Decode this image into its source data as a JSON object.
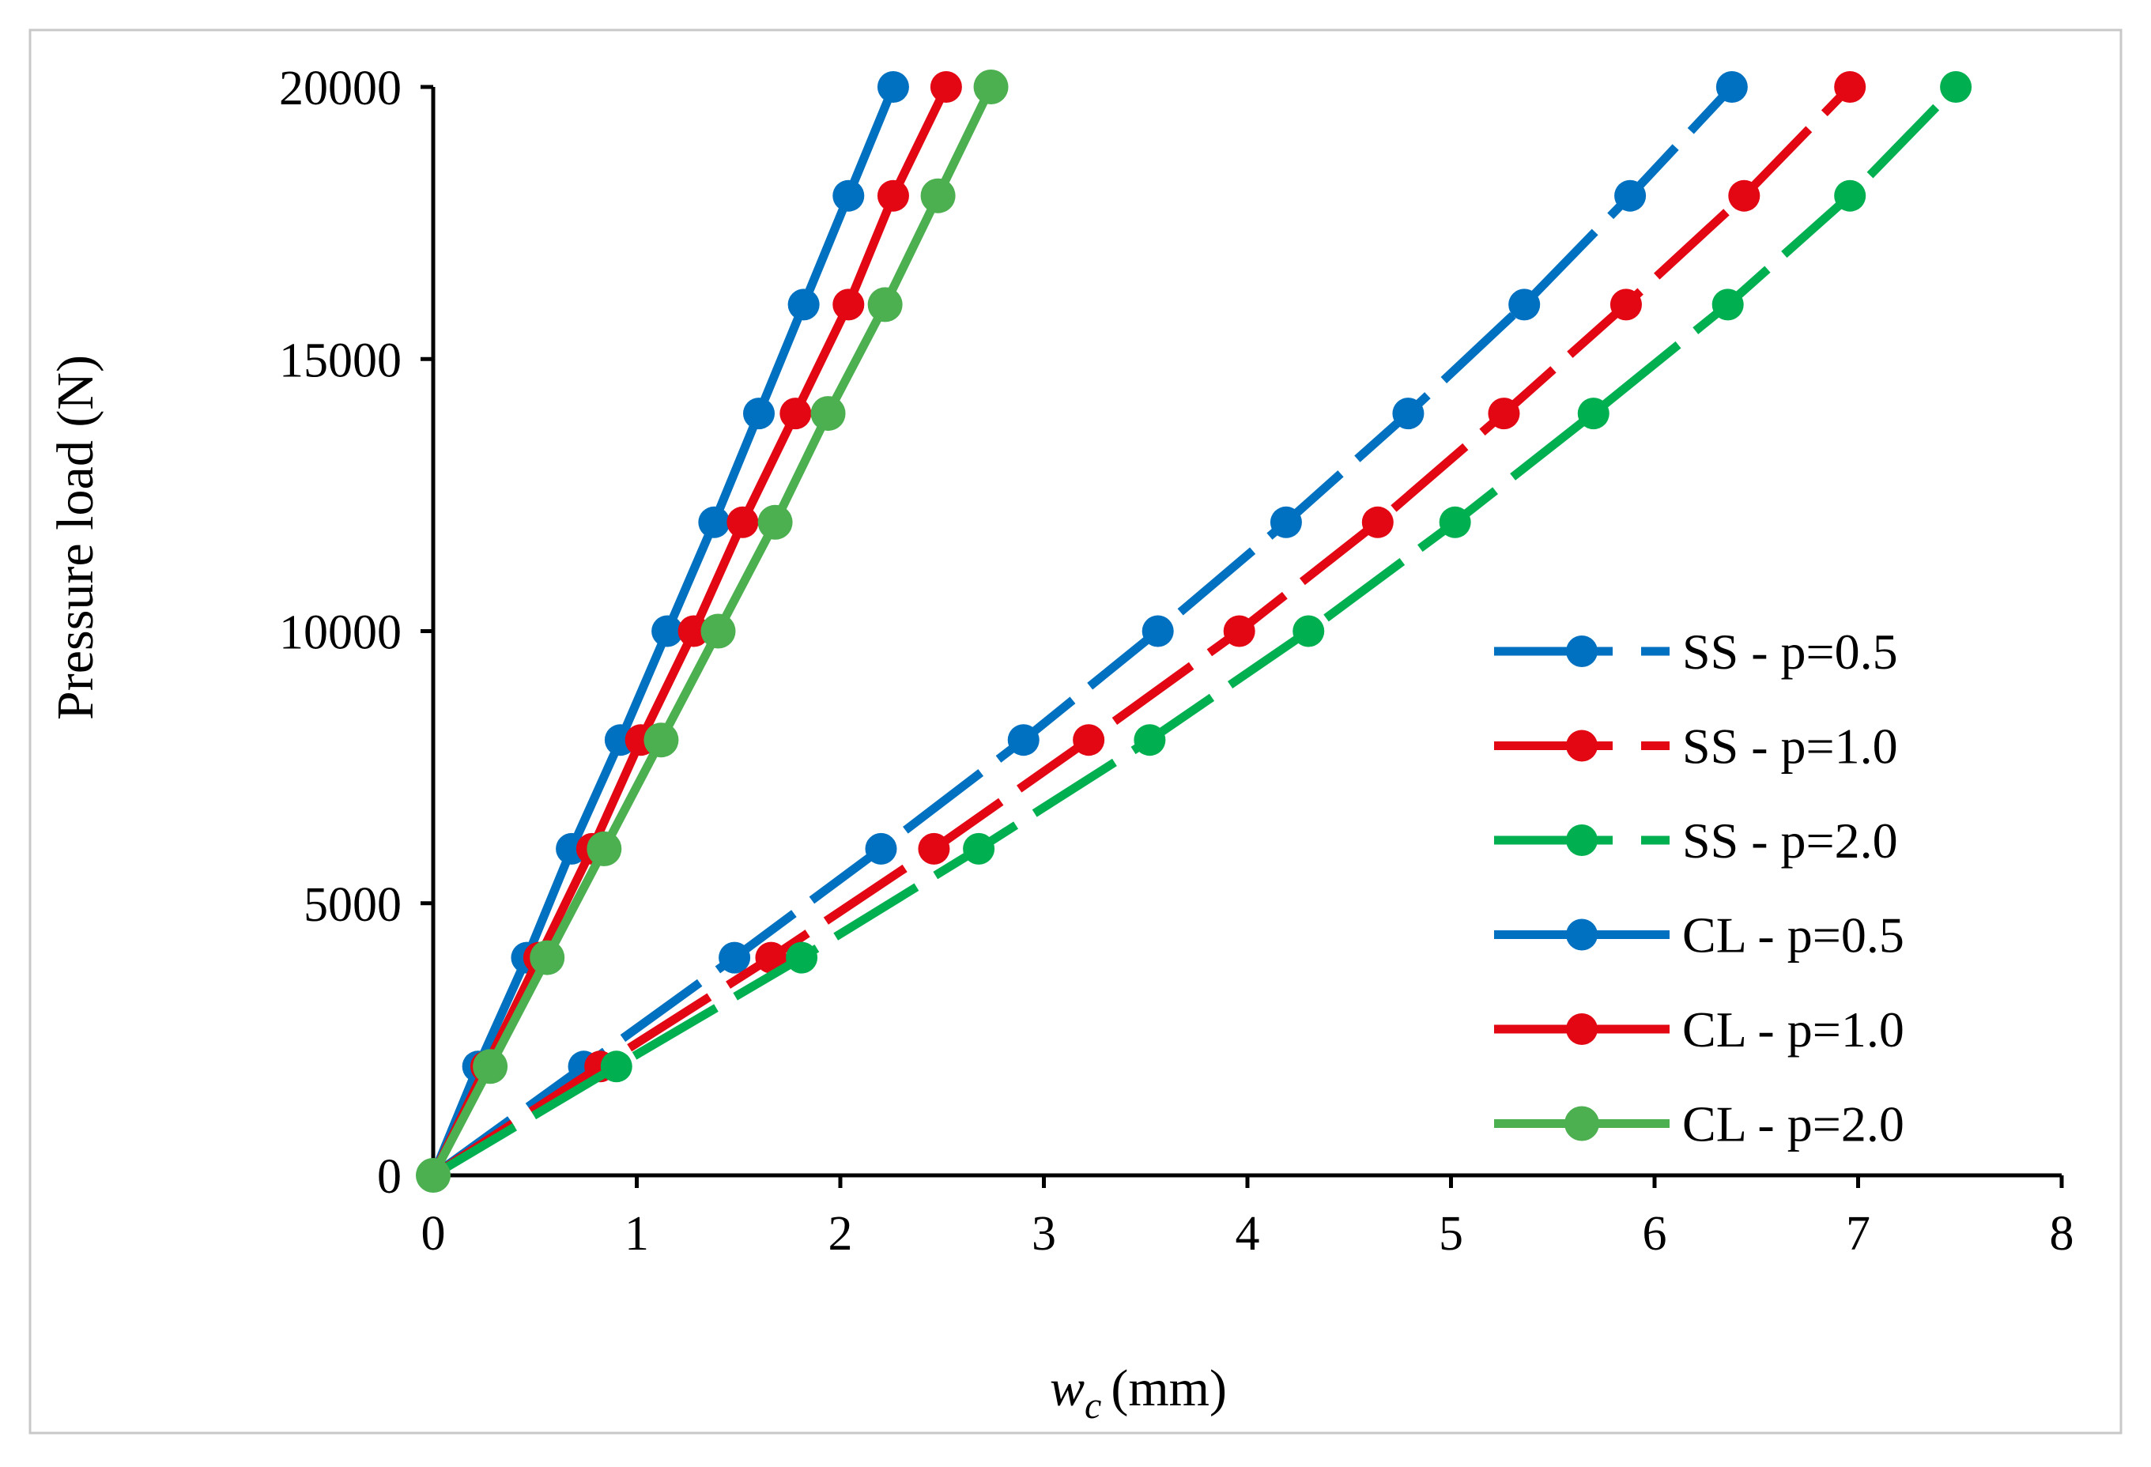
{
  "chart_data": {
    "type": "line",
    "title": "",
    "xlabel": {
      "symbol": "w",
      "subscript": "c",
      "unit": "(mm)"
    },
    "ylabel": "Pressure load (N)",
    "xlim": [
      0,
      8
    ],
    "ylim": [
      0,
      20000
    ],
    "x_ticks": [
      0,
      1,
      2,
      3,
      4,
      5,
      6,
      7,
      8
    ],
    "y_ticks": [
      0,
      5000,
      10000,
      15000,
      20000
    ],
    "grid": false,
    "legend_position": "right",
    "series": [
      {
        "name": "SS - p=0.5",
        "style": "dashed",
        "color": "#0070C0",
        "points": [
          [
            0,
            0
          ],
          [
            0.74,
            2000
          ],
          [
            1.48,
            4000
          ],
          [
            2.2,
            6000
          ],
          [
            2.9,
            8000
          ],
          [
            3.56,
            10000
          ],
          [
            4.19,
            12000
          ],
          [
            4.79,
            14000
          ],
          [
            5.36,
            16000
          ],
          [
            5.88,
            18000
          ],
          [
            6.38,
            20000
          ]
        ]
      },
      {
        "name": "SS - p=1.0",
        "style": "dashed",
        "color": "#E30613",
        "points": [
          [
            0,
            0
          ],
          [
            0.82,
            2000
          ],
          [
            1.66,
            4000
          ],
          [
            2.46,
            6000
          ],
          [
            3.22,
            8000
          ],
          [
            3.96,
            10000
          ],
          [
            4.64,
            12000
          ],
          [
            5.26,
            14000
          ],
          [
            5.86,
            16000
          ],
          [
            6.44,
            18000
          ],
          [
            6.96,
            20000
          ]
        ]
      },
      {
        "name": "SS - p=2.0",
        "style": "dashed",
        "color": "#00B050",
        "points": [
          [
            0,
            0
          ],
          [
            0.9,
            2000
          ],
          [
            1.81,
            4000
          ],
          [
            2.68,
            6000
          ],
          [
            3.52,
            8000
          ],
          [
            4.3,
            10000
          ],
          [
            5.02,
            12000
          ],
          [
            5.7,
            14000
          ],
          [
            6.36,
            16000
          ],
          [
            6.96,
            18000
          ],
          [
            7.48,
            20000
          ]
        ]
      },
      {
        "name": "CL - p=0.5",
        "style": "solid",
        "color": "#0070C0",
        "points": [
          [
            0,
            0
          ],
          [
            0.22,
            2000
          ],
          [
            0.46,
            4000
          ],
          [
            0.68,
            6000
          ],
          [
            0.92,
            8000
          ],
          [
            1.15,
            10000
          ],
          [
            1.38,
            12000
          ],
          [
            1.6,
            14000
          ],
          [
            1.82,
            16000
          ],
          [
            2.04,
            18000
          ],
          [
            2.26,
            20000
          ]
        ]
      },
      {
        "name": "CL - p=1.0",
        "style": "solid",
        "color": "#E30613",
        "points": [
          [
            0,
            0
          ],
          [
            0.26,
            2000
          ],
          [
            0.52,
            4000
          ],
          [
            0.78,
            6000
          ],
          [
            1.02,
            8000
          ],
          [
            1.28,
            10000
          ],
          [
            1.52,
            12000
          ],
          [
            1.78,
            14000
          ],
          [
            2.04,
            16000
          ],
          [
            2.26,
            18000
          ],
          [
            2.52,
            20000
          ]
        ]
      },
      {
        "name": "CL - p=2.0",
        "style": "solid",
        "color": "#4CAF50",
        "points": [
          [
            0,
            0
          ],
          [
            0.28,
            2000
          ],
          [
            0.56,
            4000
          ],
          [
            0.84,
            6000
          ],
          [
            1.12,
            8000
          ],
          [
            1.4,
            10000
          ],
          [
            1.68,
            12000
          ],
          [
            1.94,
            14000
          ],
          [
            2.22,
            16000
          ],
          [
            2.48,
            18000
          ],
          [
            2.74,
            20000
          ]
        ]
      }
    ]
  }
}
